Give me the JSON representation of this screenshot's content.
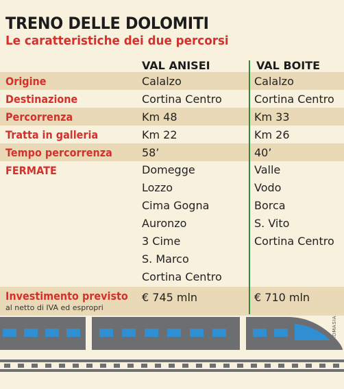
{
  "header": {
    "title": "TRENO DELLE DOLOMITI",
    "subtitle": "Le caratteristiche dei due percorsi"
  },
  "columns": {
    "route1": "VAL ANISEI",
    "route2": "VAL BOITE"
  },
  "rows": [
    {
      "label": "Origine",
      "v1": "Calalzo",
      "v2": "Calalzo"
    },
    {
      "label": "Destinazione",
      "v1": "Cortina Centro",
      "v2": "Cortina Centro"
    },
    {
      "label": "Percorrenza",
      "v1": "Km 48",
      "v2": "Km 33"
    },
    {
      "label": "Tratta in galleria",
      "v1": "Km 22",
      "v2": "Km 26"
    },
    {
      "label": "Tempo percorrenza",
      "v1": "58’",
      "v2": "40’"
    }
  ],
  "stops": {
    "label": "FERMATE",
    "route1": [
      "Domegge",
      "Lozzo",
      "Cima Gogna",
      "Auronzo",
      "3 Cime",
      "S. Marco",
      "Cortina Centro"
    ],
    "route2": [
      "Valle",
      "Vodo",
      "Borca",
      "S. Vito",
      "Cortina Centro"
    ]
  },
  "investment": {
    "label": "Investimento previsto",
    "note": "al netto di IVA ed espropri",
    "v1": "€ 745 mln",
    "v2": "€ 710 mln"
  },
  "credit": "CROMASIA",
  "colors": {
    "background": "#f8f1de",
    "shade": "#ead9b6",
    "label_red": "#d4312c",
    "divider_green": "#2f8a3d",
    "train_gray": "#6d6e71",
    "window_blue": "#2f8fd0"
  }
}
